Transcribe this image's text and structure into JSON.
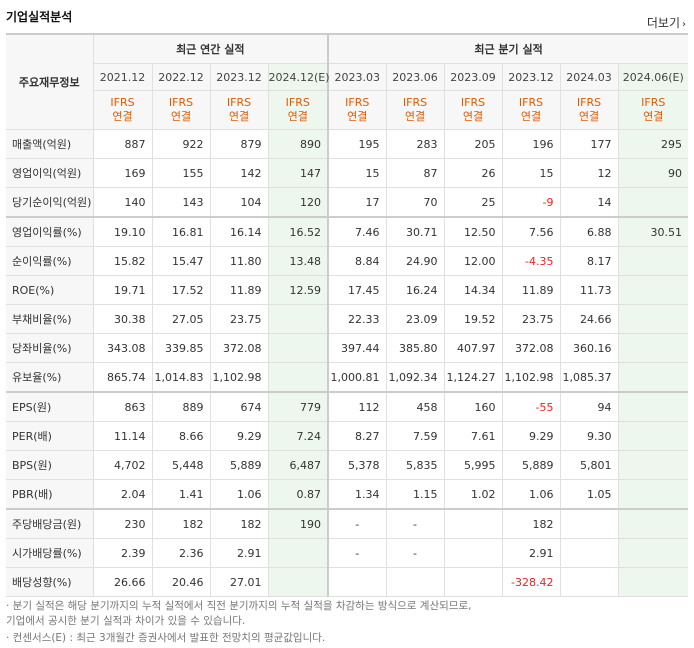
{
  "title": "기업실적분석",
  "more_label": "더보기",
  "header": {
    "corner_label": "주요재무정보",
    "annual_group": "최근 연간 실적",
    "quarterly_group": "최근 분기 실적",
    "periods": [
      "2021.12",
      "2022.12",
      "2023.12",
      "2024.12(E)",
      "2023.03",
      "2023.06",
      "2023.09",
      "2023.12",
      "2024.03",
      "2024.06(E)"
    ],
    "standard_line1": "IFRS",
    "standard_line2": "연결"
  },
  "rows": [
    {
      "label": "매출액(억원)",
      "values": [
        "887",
        "922",
        "879",
        "890",
        "195",
        "283",
        "205",
        "196",
        "177",
        "295"
      ]
    },
    {
      "label": "영업이익(억원)",
      "values": [
        "169",
        "155",
        "142",
        "147",
        "15",
        "87",
        "26",
        "15",
        "12",
        "90"
      ]
    },
    {
      "label": "당기순이익(억원)",
      "values": [
        "140",
        "143",
        "104",
        "120",
        "17",
        "70",
        "25",
        "-9",
        "14",
        ""
      ]
    },
    {
      "label": "영업이익률(%)",
      "values": [
        "19.10",
        "16.81",
        "16.14",
        "16.52",
        "7.46",
        "30.71",
        "12.50",
        "7.56",
        "6.88",
        "30.51"
      ]
    },
    {
      "label": "순이익률(%)",
      "values": [
        "15.82",
        "15.47",
        "11.80",
        "13.48",
        "8.84",
        "24.90",
        "12.00",
        "-4.35",
        "8.17",
        ""
      ]
    },
    {
      "label": "ROE(%)",
      "values": [
        "19.71",
        "17.52",
        "11.89",
        "12.59",
        "17.45",
        "16.24",
        "14.34",
        "11.89",
        "11.73",
        ""
      ]
    },
    {
      "label": "부채비율(%)",
      "values": [
        "30.38",
        "27.05",
        "23.75",
        "",
        "22.33",
        "23.09",
        "19.52",
        "23.75",
        "24.66",
        ""
      ]
    },
    {
      "label": "당좌비율(%)",
      "values": [
        "343.08",
        "339.85",
        "372.08",
        "",
        "397.44",
        "385.80",
        "407.97",
        "372.08",
        "360.16",
        ""
      ]
    },
    {
      "label": "유보율(%)",
      "values": [
        "865.74",
        "1,014.83",
        "1,102.98",
        "",
        "1,000.81",
        "1,092.34",
        "1,124.27",
        "1,102.98",
        "1,085.37",
        ""
      ]
    },
    {
      "label": "EPS(원)",
      "values": [
        "863",
        "889",
        "674",
        "779",
        "112",
        "458",
        "160",
        "-55",
        "94",
        ""
      ]
    },
    {
      "label": "PER(배)",
      "values": [
        "11.14",
        "8.66",
        "9.29",
        "7.24",
        "8.27",
        "7.59",
        "7.61",
        "9.29",
        "9.30",
        ""
      ]
    },
    {
      "label": "BPS(원)",
      "values": [
        "4,702",
        "5,448",
        "5,889",
        "6,487",
        "5,378",
        "5,835",
        "5,995",
        "5,889",
        "5,801",
        ""
      ]
    },
    {
      "label": "PBR(배)",
      "values": [
        "2.04",
        "1.41",
        "1.06",
        "0.87",
        "1.34",
        "1.15",
        "1.02",
        "1.06",
        "1.05",
        ""
      ]
    },
    {
      "label": "주당배당금(원)",
      "values": [
        "230",
        "182",
        "182",
        "190",
        "-",
        "-",
        "",
        "182",
        "",
        ""
      ]
    },
    {
      "label": "시가배당률(%)",
      "values": [
        "2.39",
        "2.36",
        "2.91",
        "",
        "-",
        "-",
        "",
        "2.91",
        "",
        ""
      ]
    },
    {
      "label": "배당성향(%)",
      "values": [
        "26.66",
        "20.46",
        "27.01",
        "",
        "",
        "",
        "",
        "-328.42",
        "",
        ""
      ]
    }
  ],
  "footnotes": [
    "· 분기 실적은 해당 분기까지의 누적 실적에서 직전 분기까지의 누적 실적을 차감하는 방식으로 계산되므로,",
    "  기업에서 공시한 분기 실적과 차이가 있을 수 있습니다.",
    "· 컨센서스(E) : 최근 3개월간 증권사에서 발표한 전망치의 평균값입니다."
  ],
  "colors": {
    "ifrs": "#e05a00",
    "negative": "#e22222",
    "estimate_bg": "#eef7ee",
    "header_bg": "#f7f7f7"
  }
}
